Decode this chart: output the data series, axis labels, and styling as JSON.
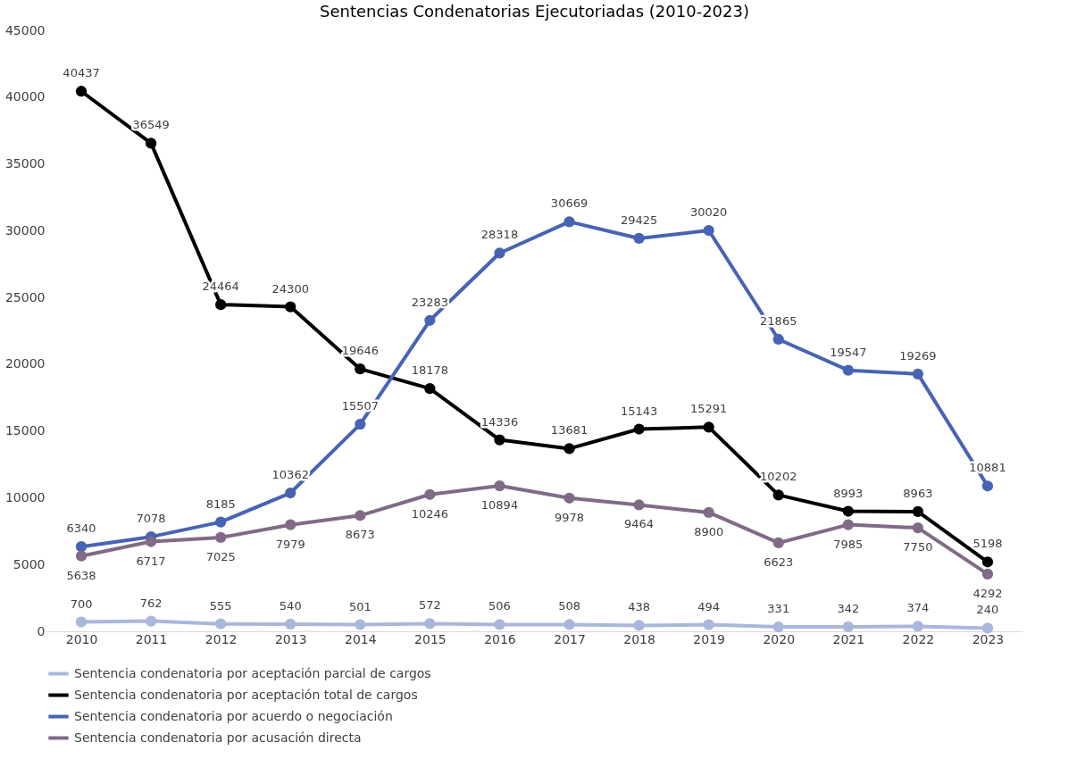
{
  "chart_data": {
    "type": "line",
    "title": "Sentencias Condenatorias Ejecutoriadas (2010-2023)",
    "categories": [
      "2010",
      "2011",
      "2012",
      "2013",
      "2014",
      "2015",
      "2016",
      "2017",
      "2018",
      "2019",
      "2020",
      "2021",
      "2022",
      "2023"
    ],
    "series": [
      {
        "name": "Sentencia condenatoria por aceptación parcial de cargos",
        "color": "#a9b7dc",
        "values": [
          700,
          762,
          555,
          540,
          501,
          572,
          506,
          508,
          438,
          494,
          331,
          342,
          374,
          240
        ]
      },
      {
        "name": "Sentencia condenatoria por aceptación total de cargos",
        "color": "#000000",
        "values": [
          40437,
          36549,
          24464,
          24300,
          19646,
          18178,
          14336,
          13681,
          15143,
          15291,
          10202,
          8993,
          8963,
          5198
        ]
      },
      {
        "name": "Sentencia condenatoria por acuerdo o negociación",
        "color": "#4763b3",
        "values": [
          6340,
          7078,
          8185,
          10362,
          15507,
          23283,
          28318,
          30669,
          29425,
          30020,
          21865,
          19547,
          19269,
          10881
        ]
      },
      {
        "name": "Sentencia condenatoria por acusación directa",
        "color": "#806a86",
        "values": [
          5638,
          6717,
          7025,
          7979,
          8673,
          10246,
          10894,
          9978,
          9464,
          8900,
          6623,
          7985,
          7750,
          4292
        ]
      }
    ],
    "ylim": [
      0,
      45000
    ],
    "yticks": [
      0,
      5000,
      10000,
      15000,
      20000,
      25000,
      30000,
      35000,
      40000,
      45000
    ],
    "grid": false,
    "legend": "bottom",
    "marker": "circle",
    "line_style": "solid",
    "data_labels": true
  }
}
